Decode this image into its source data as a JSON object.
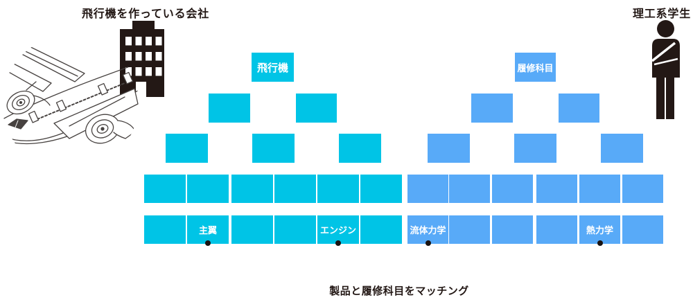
{
  "page": {
    "background": "#ffffff"
  },
  "colors": {
    "cyan": "#00c4e6",
    "blue": "#58aaf8",
    "ink": "#231815",
    "dot": "#1a1311",
    "box_text": "#ffffff",
    "line_art": "#474240"
  },
  "labels": {
    "company": "飛行機を作っている会社",
    "student": "理工系学生",
    "caption": "製品と履修科目をマッチング"
  },
  "product_tree": {
    "root_label": "飛行機",
    "level2_count": 2,
    "level3_count": 3
  },
  "course_tree": {
    "root_label": "履修科目",
    "level2_count": 2,
    "level3_count": 3
  },
  "matrix": {
    "product_upper": [
      "",
      "",
      "",
      "",
      "",
      ""
    ],
    "product_lower": [
      "",
      "主翼",
      "",
      "",
      "エンジン",
      ""
    ],
    "course_upper": [
      "",
      "",
      "",
      "",
      "",
      ""
    ],
    "course_lower": [
      "流体力学",
      "",
      "",
      "",
      "熱力学",
      ""
    ],
    "product_dot_indices": [
      1,
      4
    ],
    "course_dot_indices": [
      0,
      4
    ]
  },
  "icons": {
    "left_icon": "building-icon",
    "left_illustration": "airplane-line-art-circle",
    "right_icon": "student-icon"
  }
}
